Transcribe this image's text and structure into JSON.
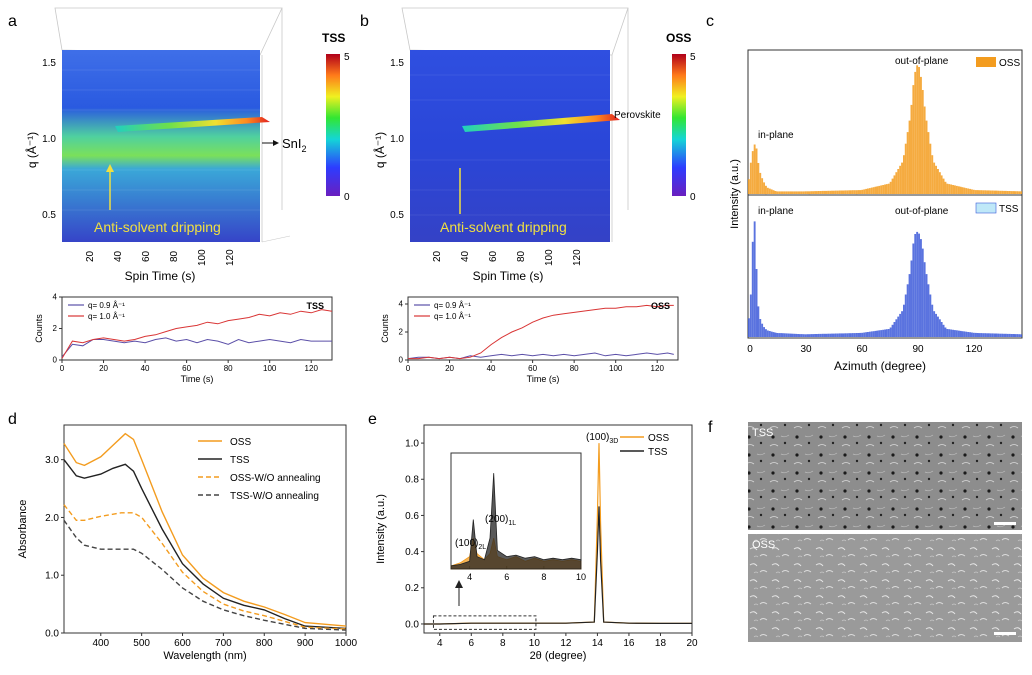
{
  "panels": {
    "a": {
      "letter": "a",
      "colorbar_title": "TSS",
      "colorbar_max": "5",
      "colorbar_min": "0",
      "ylabel": "q (Å⁻¹)",
      "y_ticks": [
        "0.5",
        "1.0",
        "1.5"
      ],
      "xlabel": "Spin Time (s)",
      "x_ticks": [
        "20",
        "40",
        "60",
        "80",
        "100",
        "120"
      ],
      "arrow_label": "SnI",
      "arrow_label_sub": "2",
      "annotation": "Anti-solvent dripping"
    },
    "b": {
      "letter": "b",
      "colorbar_title": "OSS",
      "colorbar_max": "5",
      "colorbar_min": "0",
      "ylabel": "q (Å⁻¹)",
      "y_ticks": [
        "0.5",
        "1.0",
        "1.5"
      ],
      "xlabel": "Spin Time (s)",
      "x_ticks": [
        "20",
        "40",
        "60",
        "80",
        "100",
        "120"
      ],
      "arrow_label": "Perovskite",
      "annotation": "Anti-solvent dripping"
    },
    "c": {
      "letter": "c",
      "ylabel": "Intensity (a.u.)",
      "xlabel": "Azimuth (degree)",
      "x_ticks": [
        "0",
        "30",
        "60",
        "90",
        "120"
      ],
      "top_label_inplane": "in-plane",
      "top_label_outplane": "out-of-plane",
      "top_legend": "OSS",
      "bottom_label_inplane": "in-plane",
      "bottom_label_outplane": "out-of-plane",
      "bottom_legend": "TSS"
    },
    "d": {
      "letter": "d"
    },
    "e": {
      "letter": "e",
      "peak_3d": "(100)",
      "peak_3d_sub": "3D",
      "inset_peak_1": "(100)",
      "inset_peak_1_sub": "2L",
      "inset_peak_2": "(200)",
      "inset_peak_2_sub": "1L"
    },
    "f": {
      "letter": "f",
      "top_label": "TSS",
      "bottom_label": "OSS"
    }
  },
  "colors": {
    "oss": "#f39c1f",
    "tss": "#222222",
    "tss_blue": "#3d5bd9",
    "series_purple": "#5b4fa8",
    "series_red": "#d93535"
  },
  "chart_data": [
    {
      "id": "a-kinetics",
      "type": "line",
      "title": "TSS",
      "xlabel": "Time (s)",
      "ylabel": "Counts",
      "xlim": [
        0,
        130
      ],
      "ylim": [
        0,
        4
      ],
      "x_ticks": [
        0,
        20,
        40,
        60,
        80,
        100,
        120
      ],
      "y_ticks": [
        0,
        2,
        4
      ],
      "series": [
        {
          "name": "q= 0.9 Å⁻¹",
          "color": "#5b4fa8",
          "x": [
            0,
            5,
            10,
            15,
            20,
            25,
            30,
            35,
            40,
            45,
            50,
            55,
            60,
            65,
            70,
            75,
            80,
            85,
            90,
            95,
            100,
            105,
            110,
            115,
            120,
            125,
            130
          ],
          "y": [
            0.2,
            1.0,
            0.9,
            1.3,
            1.3,
            1.2,
            1.1,
            1.2,
            1.1,
            1.3,
            1.4,
            1.2,
            1.3,
            1.1,
            1.3,
            1.2,
            1.0,
            1.3,
            1.1,
            1.2,
            1.3,
            1.2,
            1.1,
            1.3,
            1.2,
            1.2,
            1.2
          ]
        },
        {
          "name": "q= 1.0 Å⁻¹",
          "color": "#d93535",
          "x": [
            0,
            5,
            10,
            15,
            20,
            25,
            30,
            35,
            40,
            45,
            50,
            55,
            60,
            65,
            70,
            75,
            80,
            85,
            90,
            95,
            100,
            105,
            110,
            115,
            120,
            125,
            130
          ],
          "y": [
            0.1,
            1.2,
            1.1,
            1.3,
            1.4,
            1.3,
            1.2,
            1.3,
            1.5,
            1.6,
            1.8,
            2.0,
            2.1,
            2.2,
            2.4,
            2.3,
            2.5,
            2.6,
            2.7,
            2.9,
            2.8,
            3.0,
            2.9,
            3.1,
            3.0,
            3.2,
            3.1
          ]
        }
      ]
    },
    {
      "id": "b-kinetics",
      "type": "line",
      "title": "OSS",
      "xlabel": "Time (s)",
      "ylabel": "Counts",
      "xlim": [
        0,
        130
      ],
      "ylim": [
        0,
        4.5
      ],
      "x_ticks": [
        0,
        20,
        40,
        60,
        80,
        100,
        120
      ],
      "y_ticks": [
        0,
        2,
        4
      ],
      "series": [
        {
          "name": "q= 0.9 Å⁻¹",
          "color": "#5b4fa8",
          "x": [
            0,
            5,
            10,
            15,
            20,
            25,
            30,
            35,
            40,
            45,
            50,
            55,
            60,
            65,
            70,
            75,
            80,
            85,
            90,
            95,
            100,
            105,
            110,
            115,
            120,
            125,
            128
          ],
          "y": [
            0.1,
            0.2,
            0.2,
            0.1,
            0.2,
            0.1,
            0.3,
            0.2,
            0.3,
            0.4,
            0.3,
            0.4,
            0.3,
            0.4,
            0.3,
            0.4,
            0.3,
            0.4,
            0.5,
            0.3,
            0.4,
            0.3,
            0.4,
            0.5,
            0.4,
            0.5,
            0.4
          ]
        },
        {
          "name": "q= 1.0 Å⁻¹",
          "color": "#d93535",
          "x": [
            0,
            5,
            10,
            15,
            20,
            25,
            30,
            35,
            40,
            45,
            50,
            55,
            60,
            65,
            70,
            75,
            80,
            85,
            90,
            95,
            100,
            105,
            110,
            115,
            120,
            125,
            128
          ],
          "y": [
            0.1,
            0.1,
            0.2,
            0.1,
            0.2,
            0.1,
            0.2,
            0.5,
            1.1,
            1.6,
            2.0,
            2.3,
            2.7,
            3.0,
            3.2,
            3.3,
            3.4,
            3.5,
            3.6,
            3.7,
            3.7,
            3.8,
            3.8,
            3.9,
            3.8,
            3.9,
            3.9
          ]
        }
      ]
    },
    {
      "id": "d-absorbance",
      "type": "line",
      "xlabel": "Wavelength (nm)",
      "ylabel": "Absorbance",
      "xlim": [
        310,
        1000
      ],
      "ylim": [
        0,
        3.6
      ],
      "x_ticks": [
        400,
        500,
        600,
        700,
        800,
        900,
        1000
      ],
      "y_ticks": [
        "0.0",
        "1.0",
        "2.0",
        "3.0"
      ],
      "series": [
        {
          "name": "OSS",
          "color": "#f39c1f",
          "dash": false,
          "x": [
            310,
            340,
            360,
            400,
            430,
            460,
            480,
            500,
            550,
            600,
            650,
            700,
            750,
            800,
            850,
            900,
            1000
          ],
          "y": [
            3.28,
            2.95,
            2.9,
            3.05,
            3.25,
            3.45,
            3.35,
            3.0,
            2.1,
            1.35,
            0.95,
            0.7,
            0.55,
            0.45,
            0.32,
            0.18,
            0.12
          ]
        },
        {
          "name": "TSS",
          "color": "#222222",
          "dash": false,
          "x": [
            310,
            340,
            360,
            400,
            430,
            460,
            480,
            500,
            550,
            600,
            650,
            700,
            750,
            800,
            850,
            900,
            1000
          ],
          "y": [
            3.0,
            2.72,
            2.68,
            2.75,
            2.85,
            2.92,
            2.8,
            2.5,
            1.8,
            1.2,
            0.85,
            0.6,
            0.48,
            0.4,
            0.25,
            0.12,
            0.08
          ]
        },
        {
          "name": "OSS-W/O annealing",
          "color": "#f39c1f",
          "dash": true,
          "x": [
            310,
            340,
            360,
            400,
            450,
            480,
            500,
            550,
            600,
            650,
            700,
            750,
            800,
            850,
            900,
            1000
          ],
          "y": [
            2.22,
            1.95,
            1.95,
            2.02,
            2.08,
            2.08,
            2.0,
            1.55,
            1.05,
            0.72,
            0.5,
            0.38,
            0.3,
            0.2,
            0.1,
            0.07
          ]
        },
        {
          "name": "TSS-W/O annealing",
          "color": "#444444",
          "dash": true,
          "x": [
            310,
            340,
            360,
            400,
            450,
            480,
            500,
            550,
            600,
            650,
            700,
            750,
            800,
            850,
            900,
            1000
          ],
          "y": [
            1.95,
            1.65,
            1.52,
            1.45,
            1.45,
            1.45,
            1.38,
            1.1,
            0.78,
            0.55,
            0.4,
            0.3,
            0.22,
            0.15,
            0.08,
            0.05
          ]
        }
      ]
    },
    {
      "id": "e-xrd",
      "type": "line",
      "xlabel": "2θ (degree)",
      "ylabel": "Intensity (a.u.)",
      "xlim": [
        3,
        20
      ],
      "ylim": [
        -0.05,
        1.1
      ],
      "x_ticks": [
        4,
        6,
        8,
        10,
        12,
        14,
        16,
        18,
        20
      ],
      "y_ticks": [
        "0.0",
        "0.2",
        "0.4",
        "0.6",
        "0.8",
        "1.0"
      ],
      "series": [
        {
          "name": "OSS",
          "color": "#f39c1f",
          "x": [
            3,
            4,
            6,
            8,
            10,
            12,
            13.8,
            14.0,
            14.1,
            14.2,
            14.4,
            16,
            18,
            20
          ],
          "y": [
            0,
            0,
            0.005,
            0.005,
            0.005,
            0.005,
            0.01,
            0.6,
            1.0,
            0.55,
            0.01,
            0.005,
            0.003,
            0.003
          ]
        },
        {
          "name": "TSS",
          "color": "#222222",
          "x": [
            3,
            4,
            6,
            8,
            10,
            12,
            13.8,
            14.0,
            14.1,
            14.2,
            14.4,
            16,
            18,
            20
          ],
          "y": [
            0,
            0,
            0.004,
            0.004,
            0.004,
            0.004,
            0.01,
            0.4,
            0.65,
            0.35,
            0.01,
            0.004,
            0.003,
            0.003
          ]
        }
      ],
      "inset": {
        "xlim": [
          3,
          10
        ],
        "x_ticks": [
          4,
          6,
          8,
          10
        ],
        "series": [
          {
            "name": "OSS",
            "color": "#f39c1f",
            "x": [
              3,
              3.5,
              4.0,
              4.2,
              4.4,
              4.8,
              5.1,
              5.3,
              5.5,
              6.0,
              6.5,
              7.0,
              7.5,
              8.0,
              8.5,
              9.0,
              9.5,
              10
            ],
            "y": [
              0.02,
              0.04,
              0.08,
              0.2,
              0.1,
              0.06,
              0.1,
              0.2,
              0.08,
              0.06,
              0.08,
              0.05,
              0.07,
              0.05,
              0.06,
              0.05,
              0.06,
              0.05
            ]
          },
          {
            "name": "TSS",
            "color": "#222222",
            "x": [
              3,
              3.5,
              4.0,
              4.2,
              4.4,
              4.8,
              5.1,
              5.3,
              5.5,
              6.0,
              6.5,
              7.0,
              7.5,
              8.0,
              8.5,
              9.0,
              9.5,
              10
            ],
            "y": [
              0.02,
              0.03,
              0.05,
              0.32,
              0.08,
              0.06,
              0.2,
              0.62,
              0.12,
              0.08,
              0.09,
              0.07,
              0.08,
              0.06,
              0.07,
              0.06,
              0.07,
              0.06
            ]
          }
        ]
      }
    },
    {
      "id": "c-azimuth",
      "type": "bar",
      "xlabel": "Azimuth (degree)",
      "ylabel": "Intensity (a.u.)",
      "xlim": [
        0,
        145
      ],
      "series": [
        {
          "name": "OSS",
          "color": "#f39c1f",
          "x": [
            0,
            2,
            4,
            6,
            8,
            10,
            15,
            30,
            60,
            75,
            82,
            86,
            88,
            90,
            92,
            94,
            98,
            105,
            120,
            145
          ],
          "y": [
            0.05,
            0.3,
            0.4,
            0.18,
            0.1,
            0.05,
            0.02,
            0.02,
            0.03,
            0.08,
            0.25,
            0.6,
            0.9,
            1.0,
            0.85,
            0.6,
            0.25,
            0.08,
            0.03,
            0.02
          ]
        },
        {
          "name": "TSS",
          "color": "#3d5bd9",
          "x": [
            0,
            2,
            3,
            4,
            5,
            6,
            8,
            10,
            15,
            30,
            60,
            75,
            82,
            86,
            88,
            90,
            92,
            94,
            98,
            105,
            120,
            145
          ],
          "y": [
            0.05,
            0.4,
            1.0,
            0.7,
            0.3,
            0.15,
            0.08,
            0.05,
            0.03,
            0.02,
            0.03,
            0.06,
            0.2,
            0.5,
            0.75,
            0.78,
            0.7,
            0.5,
            0.2,
            0.06,
            0.03,
            0.02
          ]
        }
      ]
    }
  ]
}
